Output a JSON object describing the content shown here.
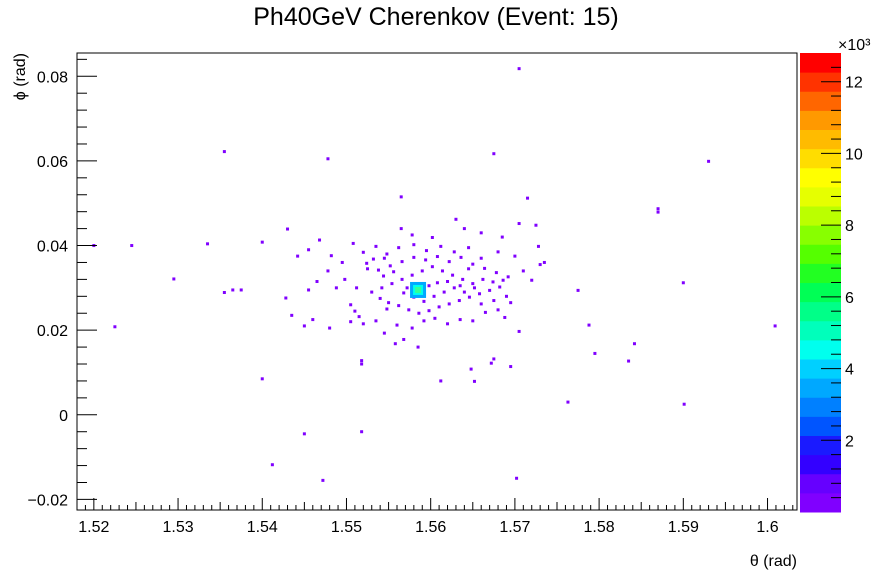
{
  "chart_data": {
    "type": "scatter",
    "title": "Ph40GeV Cherenkov (Event: 15)",
    "xlabel": "θ (rad)",
    "ylabel": "ϕ (rad)",
    "xlim": [
      1.518,
      1.6035
    ],
    "ylim": [
      -0.0225,
      0.0855
    ],
    "x_ticks": [
      1.52,
      1.53,
      1.54,
      1.55,
      1.56,
      1.57,
      1.58,
      1.59,
      1.6
    ],
    "x_tick_labels": [
      "1.52",
      "1.53",
      "1.54",
      "1.55",
      "1.56",
      "1.57",
      "1.58",
      "1.59",
      "1.6"
    ],
    "y_ticks": [
      -0.02,
      0,
      0.02,
      0.04,
      0.06,
      0.08
    ],
    "y_tick_labels": [
      "−0.02",
      "0",
      "0.02",
      "0.04",
      "0.06",
      "0.08"
    ],
    "grid": false,
    "colorbar": {
      "range": [
        0,
        12.8
      ],
      "exponent_label": "×10³",
      "ticks": [
        2,
        4,
        6,
        8,
        10,
        12
      ],
      "tick_labels": [
        "2",
        "4",
        "6",
        "8",
        "10",
        "12"
      ],
      "colors": [
        "#8000ff",
        "#6600ff",
        "#3300ff",
        "#1a1aff",
        "#0055ff",
        "#0080ff",
        "#00a8ff",
        "#00d0ff",
        "#00ffee",
        "#00ffbb",
        "#00ff88",
        "#00ff55",
        "#22ff22",
        "#55ff00",
        "#88ff00",
        "#bbff00",
        "#e6ff00",
        "#ffff00",
        "#ffdd00",
        "#ffbb00",
        "#ff9900",
        "#ff6600",
        "#ff3300",
        "#ff0000"
      ]
    },
    "points": [
      [
        1.5705,
        0.0818
      ],
      [
        1.5355,
        0.0622
      ],
      [
        1.5478,
        0.0605
      ],
      [
        1.5675,
        0.0617
      ],
      [
        1.593,
        0.0599
      ],
      [
        1.5565,
        0.0515
      ],
      [
        1.5715,
        0.0512
      ],
      [
        1.587,
        0.0487
      ],
      [
        1.587,
        0.0479
      ],
      [
        1.5245,
        0.04
      ],
      [
        1.5335,
        0.0404
      ],
      [
        1.52,
        0.04
      ],
      [
        1.54,
        0.0408
      ],
      [
        1.543,
        0.0439
      ],
      [
        1.5295,
        0.0321
      ],
      [
        1.5355,
        0.0289
      ],
      [
        1.5365,
        0.0295
      ],
      [
        1.5375,
        0.0295
      ],
      [
        1.5225,
        0.0208
      ],
      [
        1.5428,
        0.0276
      ],
      [
        1.5435,
        0.0235
      ],
      [
        1.545,
        0.021
      ],
      [
        1.546,
        0.0225
      ],
      [
        1.548,
        0.0205
      ],
      [
        1.5442,
        0.0375
      ],
      [
        1.5455,
        0.039
      ],
      [
        1.5468,
        0.0413
      ],
      [
        1.5482,
        0.0376
      ],
      [
        1.5495,
        0.036
      ],
      [
        1.5508,
        0.0405
      ],
      [
        1.552,
        0.0384
      ],
      [
        1.5535,
        0.0398
      ],
      [
        1.5548,
        0.038
      ],
      [
        1.5565,
        0.044
      ],
      [
        1.5578,
        0.0425
      ],
      [
        1.5602,
        0.0419
      ],
      [
        1.563,
        0.0462
      ],
      [
        1.564,
        0.044
      ],
      [
        1.566,
        0.043
      ],
      [
        1.5685,
        0.042
      ],
      [
        1.5705,
        0.0452
      ],
      [
        1.5725,
        0.0448
      ],
      [
        1.5728,
        0.0398
      ],
      [
        1.5735,
        0.036
      ],
      [
        1.5775,
        0.0294
      ],
      [
        1.5788,
        0.0212
      ],
      [
        1.5795,
        0.0145
      ],
      [
        1.5835,
        0.0127
      ],
      [
        1.5842,
        0.0168
      ],
      [
        1.59,
        0.0312
      ],
      [
        1.6009,
        0.021
      ],
      [
        1.5901,
        0.0025
      ],
      [
        1.5763,
        0.003
      ],
      [
        1.5695,
        0.0114
      ],
      [
        1.5705,
        0.0197
      ],
      [
        1.5688,
        0.023
      ],
      [
        1.5675,
        0.0132
      ],
      [
        1.5672,
        0.0122
      ],
      [
        1.5648,
        0.0108
      ],
      [
        1.5652,
        0.0079
      ],
      [
        1.5612,
        0.008
      ],
      [
        1.5585,
        0.016
      ],
      [
        1.5568,
        0.0178
      ],
      [
        1.5558,
        0.0168
      ],
      [
        1.5545,
        0.0193
      ],
      [
        1.5518,
        0.0128
      ],
      [
        1.5518,
        0.012
      ],
      [
        1.54,
        0.0085
      ],
      [
        1.545,
        -0.0045
      ],
      [
        1.5518,
        -0.004
      ],
      [
        1.5412,
        -0.0118
      ],
      [
        1.5472,
        -0.0155
      ],
      [
        1.5702,
        -0.015
      ],
      [
        1.5505,
        0.026
      ],
      [
        1.551,
        0.0245
      ],
      [
        1.5515,
        0.0232
      ],
      [
        1.5505,
        0.022
      ],
      [
        1.552,
        0.0215
      ],
      [
        1.5512,
        0.03
      ],
      [
        1.5525,
        0.0345
      ],
      [
        1.5498,
        0.032
      ],
      [
        1.5488,
        0.03
      ],
      [
        1.5478,
        0.034
      ],
      [
        1.5465,
        0.0315
      ],
      [
        1.5455,
        0.0295
      ],
      [
        1.5535,
        0.0222
      ],
      [
        1.5548,
        0.025
      ],
      [
        1.556,
        0.0212
      ],
      [
        1.5578,
        0.0205
      ],
      [
        1.5592,
        0.0222
      ],
      [
        1.5605,
        0.0228
      ],
      [
        1.562,
        0.0215
      ],
      [
        1.5635,
        0.0225
      ],
      [
        1.565,
        0.0222
      ],
      [
        1.5665,
        0.0242
      ],
      [
        1.568,
        0.0248
      ],
      [
        1.5695,
        0.0265
      ],
      [
        1.571,
        0.034
      ],
      [
        1.572,
        0.0318
      ],
      [
        1.573,
        0.0355
      ],
      [
        1.57,
        0.0375
      ],
      [
        1.568,
        0.0385
      ],
      [
        1.566,
        0.037
      ],
      [
        1.5645,
        0.0395
      ],
      [
        1.5628,
        0.0385
      ],
      [
        1.5612,
        0.0398
      ],
      [
        1.5595,
        0.0388
      ],
      [
        1.558,
        0.0402
      ],
      [
        1.5562,
        0.0395
      ],
      [
        1.5545,
        0.037
      ],
      [
        1.5532,
        0.0368
      ],
      [
        1.5524,
        0.0358
      ],
      [
        1.5538,
        0.0342
      ],
      [
        1.5552,
        0.0352
      ],
      [
        1.5566,
        0.0362
      ],
      [
        1.558,
        0.0372
      ],
      [
        1.5594,
        0.0366
      ],
      [
        1.5608,
        0.0374
      ],
      [
        1.5622,
        0.0362
      ],
      [
        1.5636,
        0.0372
      ],
      [
        1.565,
        0.0356
      ],
      [
        1.5664,
        0.0346
      ],
      [
        1.5678,
        0.0336
      ],
      [
        1.5692,
        0.0326
      ],
      [
        1.554,
        0.0275
      ],
      [
        1.555,
        0.0265
      ],
      [
        1.5562,
        0.0258
      ],
      [
        1.5574,
        0.0248
      ],
      [
        1.5586,
        0.024
      ],
      [
        1.5598,
        0.0246
      ],
      [
        1.561,
        0.0255
      ],
      [
        1.5622,
        0.0262
      ],
      [
        1.5634,
        0.027
      ],
      [
        1.5646,
        0.0278
      ],
      [
        1.5658,
        0.0286
      ],
      [
        1.567,
        0.0294
      ],
      [
        1.5682,
        0.0302
      ],
      [
        1.569,
        0.028
      ],
      [
        1.5675,
        0.027
      ],
      [
        1.566,
        0.0262
      ],
      [
        1.553,
        0.029
      ],
      [
        1.5542,
        0.03
      ],
      [
        1.5554,
        0.031
      ],
      [
        1.5566,
        0.032
      ],
      [
        1.5578,
        0.033
      ],
      [
        1.559,
        0.034
      ],
      [
        1.5602,
        0.035
      ],
      [
        1.5614,
        0.034
      ],
      [
        1.5626,
        0.033
      ],
      [
        1.5638,
        0.032
      ],
      [
        1.565,
        0.031
      ],
      [
        1.5662,
        0.032
      ],
      [
        1.5674,
        0.0314
      ],
      [
        1.5686,
        0.0318
      ],
      [
        1.5544,
        0.0328
      ],
      [
        1.5556,
        0.0338
      ],
      [
        1.5568,
        0.0288
      ],
      [
        1.558,
        0.0278
      ],
      [
        1.5592,
        0.0268
      ],
      [
        1.5604,
        0.028
      ],
      [
        1.5616,
        0.029
      ],
      [
        1.5628,
        0.03
      ],
      [
        1.564,
        0.029
      ],
      [
        1.5652,
        0.03
      ],
      [
        1.5572,
        0.03
      ],
      [
        1.5598,
        0.0305
      ],
      [
        1.5608,
        0.0312
      ],
      [
        1.562,
        0.0315
      ],
      [
        1.5635,
        0.0305
      ],
      [
        1.5645,
        0.0345
      ],
      [
        1.5585,
        0.0295
      ],
      [
        1.559,
        0.03
      ],
      [
        1.558,
        0.0292
      ],
      [
        1.5588,
        0.0288
      ]
    ],
    "hotspot": {
      "x": 1.5585,
      "y": 0.0295,
      "max_value": 4.6
    }
  }
}
